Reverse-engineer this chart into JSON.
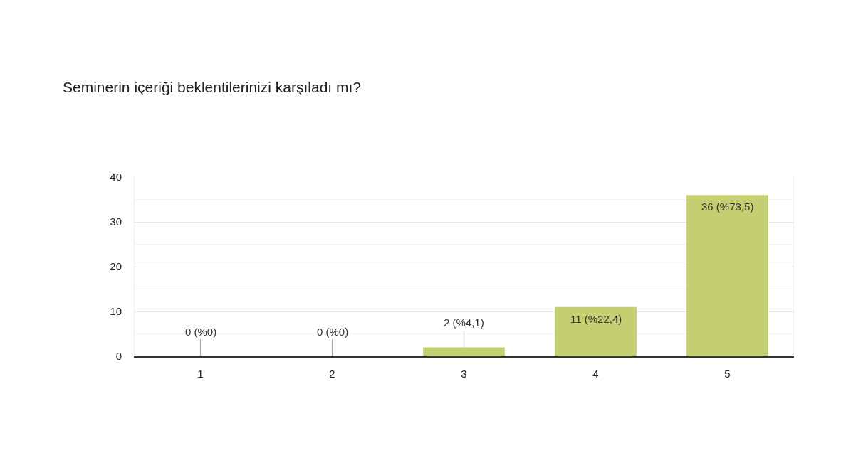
{
  "chart_data": {
    "type": "bar",
    "title": "Seminerin içeriği beklentilerinizi karşıladı mı?",
    "categories": [
      "1",
      "2",
      "3",
      "4",
      "5"
    ],
    "values": [
      0,
      0,
      2,
      11,
      36
    ],
    "value_labels": [
      "0 (%0)",
      "0 (%0)",
      "2 (%4,1)",
      "11 (%22,4)",
      "36 (%73,5)"
    ],
    "color": "#c3cf71",
    "ylim": [
      0,
      40
    ],
    "yticks": [
      0,
      {
        "value": 5,
        "label": null
      },
      10,
      {
        "value": 15,
        "label": null
      },
      20,
      {
        "value": 25,
        "label": null
      },
      30,
      {
        "value": 35,
        "label": null
      },
      40
    ],
    "grid": "y"
  }
}
